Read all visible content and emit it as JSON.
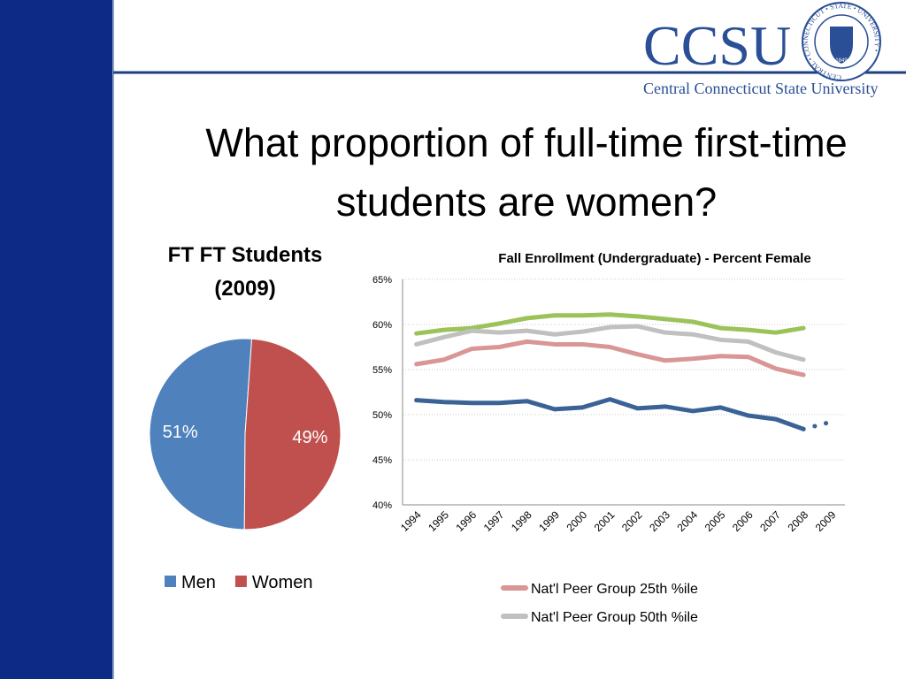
{
  "slide": {
    "title": "What proportion of full-time first-time students are women?",
    "logo": {
      "name": "CCSU",
      "subtitle": "Central Connecticut State University",
      "seal_text": "CENTRAL • CONNECTICUT • STATE • UNIVERSITY •",
      "seal_year": "1849"
    }
  },
  "chart_data": [
    {
      "type": "pie",
      "title": "FT FT Students (2009)",
      "categories": [
        "Men",
        "Women"
      ],
      "values": [
        51,
        49
      ],
      "value_labels": [
        "51%",
        "49%"
      ],
      "colors": [
        "#4f81bd",
        "#c0504d"
      ],
      "legend": "bottom"
    },
    {
      "type": "line",
      "title": "Fall Enrollment (Undergraduate) - Percent Female",
      "categories": [
        "1994",
        "1995",
        "1996",
        "1997",
        "1998",
        "1999",
        "2000",
        "2001",
        "2002",
        "2003",
        "2004",
        "2005",
        "2006",
        "2007",
        "2008",
        "2009"
      ],
      "ylim": [
        40,
        65
      ],
      "yticks": [
        {
          "value": 40,
          "label": "40%"
        },
        {
          "value": 45,
          "label": "45%"
        },
        {
          "value": 50,
          "label": "50%"
        },
        {
          "value": 55,
          "label": "55%"
        },
        {
          "value": 60,
          "label": "60%"
        },
        {
          "value": 65,
          "label": "65%"
        }
      ],
      "grid": true,
      "legend": "bottom",
      "series": [
        {
          "color": "#9bc35a",
          "values": [
            59.0,
            59.4,
            59.6,
            60.1,
            60.7,
            61.0,
            61.0,
            61.1,
            60.9,
            60.6,
            60.3,
            59.6,
            59.4,
            59.1,
            59.6,
            null
          ]
        },
        {
          "name": "Nat'l Peer Group 50th %ile",
          "color": "#c0c0c0",
          "values": [
            57.8,
            58.6,
            59.3,
            59.1,
            59.3,
            58.9,
            59.2,
            59.7,
            59.8,
            59.1,
            58.9,
            58.3,
            58.1,
            56.9,
            56.1,
            null
          ]
        },
        {
          "name": "Nat'l Peer Group 25th %ile",
          "color": "#d99694",
          "values": [
            55.6,
            56.1,
            57.3,
            57.5,
            58.1,
            57.8,
            57.8,
            57.5,
            56.7,
            56.0,
            56.2,
            56.5,
            56.4,
            55.1,
            54.4,
            null
          ]
        },
        {
          "color": "#3b6296",
          "values": [
            51.6,
            51.4,
            51.3,
            51.3,
            51.5,
            50.6,
            50.8,
            51.7,
            50.7,
            50.9,
            50.4,
            50.8,
            49.9,
            49.5,
            48.4,
            null
          ]
        },
        {
          "color": "#3b6296",
          "dashed": true,
          "values": [
            null,
            null,
            null,
            null,
            null,
            null,
            null,
            null,
            null,
            null,
            null,
            null,
            null,
            null,
            48.4,
            49.2
          ]
        }
      ]
    }
  ]
}
